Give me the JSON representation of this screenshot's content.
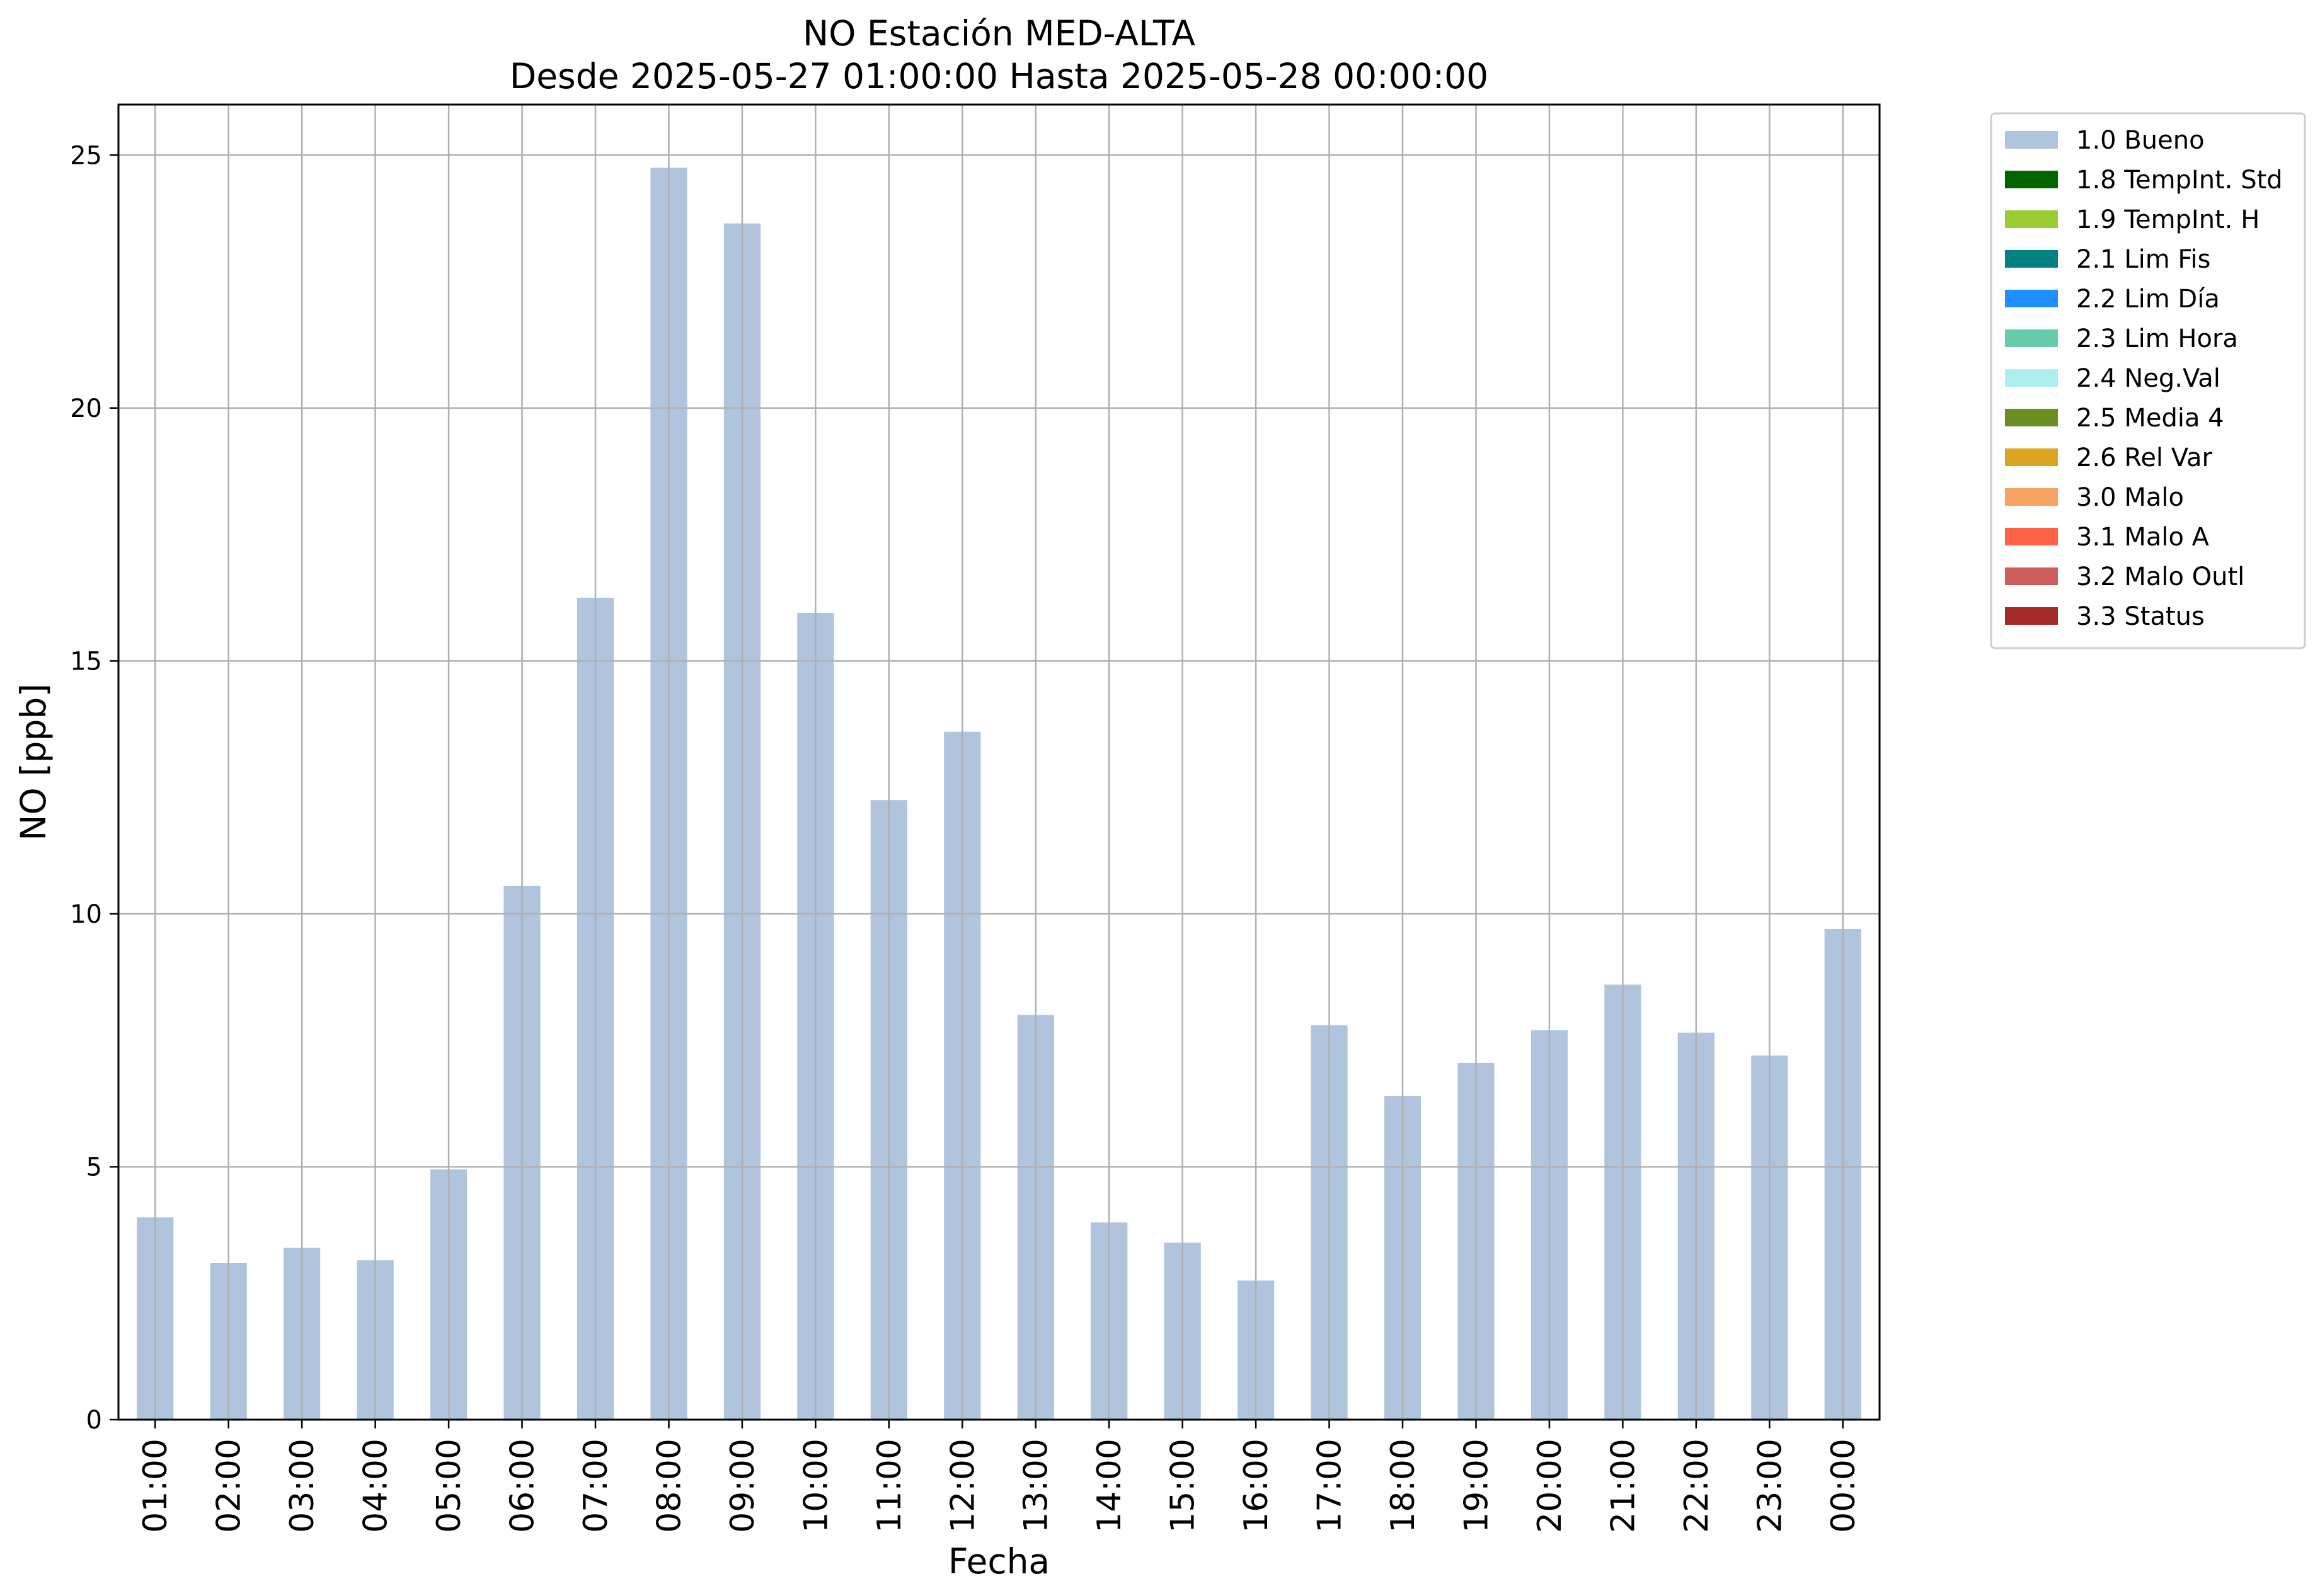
{
  "chart_data": {
    "type": "bar",
    "title_line1": "NO Estación MED-ALTA",
    "title_line2": "Desde 2025-05-27 01:00:00 Hasta 2025-05-28 00:00:00",
    "xlabel": "Fecha",
    "ylabel": "NO [ppb]",
    "ylim": [
      0,
      26
    ],
    "yticks": [
      0,
      5,
      10,
      15,
      20,
      25
    ],
    "grid": true,
    "legend_position": "outside-top-right",
    "bar_color": "#b0c4de",
    "categories": [
      "01:00",
      "02:00",
      "03:00",
      "04:00",
      "05:00",
      "06:00",
      "07:00",
      "08:00",
      "09:00",
      "10:00",
      "11:00",
      "12:00",
      "13:00",
      "14:00",
      "15:00",
      "16:00",
      "17:00",
      "18:00",
      "19:00",
      "20:00",
      "21:00",
      "22:00",
      "23:00",
      "00:00"
    ],
    "series": [
      {
        "name": "1.0 Bueno",
        "color": "#b0c4de",
        "values": [
          4.0,
          3.1,
          3.4,
          3.15,
          4.95,
          10.55,
          16.25,
          24.75,
          23.65,
          15.95,
          12.25,
          13.6,
          8.0,
          3.9,
          3.5,
          2.75,
          7.8,
          6.4,
          7.05,
          7.7,
          8.6,
          7.65,
          7.2,
          9.7
        ]
      }
    ],
    "legend": [
      {
        "label": "1.0 Bueno",
        "color": "#b0c4de"
      },
      {
        "label": "1.8 TempInt. Std",
        "color": "#006400"
      },
      {
        "label": "1.9 TempInt. H",
        "color": "#9acd32"
      },
      {
        "label": "2.1 Lim Fis",
        "color": "#008080"
      },
      {
        "label": "2.2 Lim Día",
        "color": "#1e90ff"
      },
      {
        "label": "2.3 Lim Hora",
        "color": "#66cdaa"
      },
      {
        "label": "2.4 Neg.Val",
        "color": "#afeeee"
      },
      {
        "label": "2.5 Media 4",
        "color": "#6b8e23"
      },
      {
        "label": "2.6 Rel Var",
        "color": "#daa520"
      },
      {
        "label": "3.0 Malo",
        "color": "#f4a460"
      },
      {
        "label": "3.1 Malo A",
        "color": "#ff6347"
      },
      {
        "label": "3.2 Malo Outl",
        "color": "#cd5c5c"
      },
      {
        "label": "3.3 Status",
        "color": "#a52a2a"
      }
    ]
  }
}
